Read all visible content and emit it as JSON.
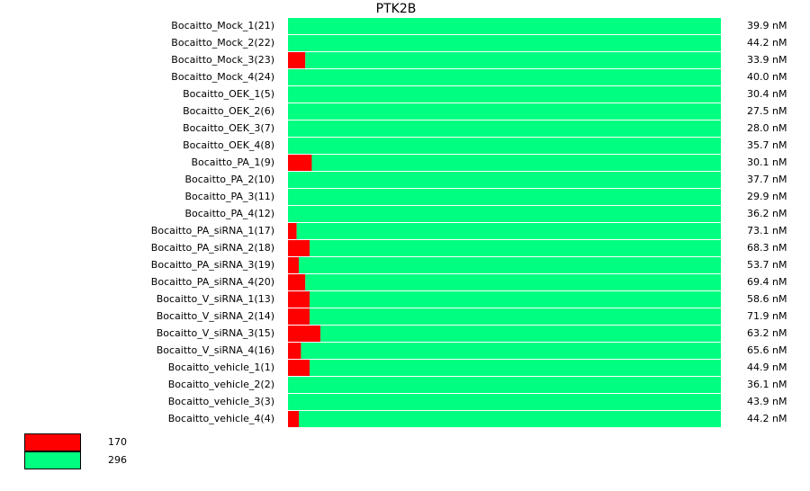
{
  "chart_data": {
    "type": "bar",
    "orientation": "horizontal",
    "stacked": true,
    "title": "PTK2B",
    "categories": [
      "Bocaitto_Mock_1(21)",
      "Bocaitto_Mock_2(22)",
      "Bocaitto_Mock_3(23)",
      "Bocaitto_Mock_4(24)",
      "Bocaitto_OEK_1(5)",
      "Bocaitto_OEK_2(6)",
      "Bocaitto_OEK_3(7)",
      "Bocaitto_OEK_4(8)",
      "Bocaitto_PA_1(9)",
      "Bocaitto_PA_2(10)",
      "Bocaitto_PA_3(11)",
      "Bocaitto_PA_4(12)",
      "Bocaitto_PA_siRNA_1(17)",
      "Bocaitto_PA_siRNA_2(18)",
      "Bocaitto_PA_siRNA_3(19)",
      "Bocaitto_PA_siRNA_4(20)",
      "Bocaitto_V_siRNA_1(13)",
      "Bocaitto_V_siRNA_2(14)",
      "Bocaitto_V_siRNA_3(15)",
      "Bocaitto_V_siRNA_4(16)",
      "Bocaitto_vehicle_1(1)",
      "Bocaitto_vehicle_2(2)",
      "Bocaitto_vehicle_3(3)",
      "Bocaitto_vehicle_4(4)"
    ],
    "series": [
      {
        "name": "170",
        "color": "#ff0000",
        "values": [
          0,
          0,
          4,
          0,
          0,
          0,
          0,
          0,
          5.5,
          0,
          0,
          0,
          2,
          5,
          2.5,
          4,
          5,
          5,
          7.5,
          3,
          5,
          0,
          0,
          2.5
        ]
      },
      {
        "name": "296",
        "color": "#00ff80",
        "values": [
          100,
          100,
          96,
          100,
          100,
          100,
          100,
          100,
          94.5,
          100,
          100,
          100,
          98,
          95,
          97.5,
          96,
          95,
          95,
          92.5,
          97,
          95,
          100,
          100,
          97.5
        ]
      }
    ],
    "concentrations": [
      "39.9 nM",
      "44.2 nM",
      "33.9 nM",
      "40.0 nM",
      "30.4 nM",
      "27.5 nM",
      "28.0 nM",
      "35.7 nM",
      "30.1 nM",
      "37.7 nM",
      "29.9 nM",
      "36.2 nM",
      "73.1 nM",
      "68.3 nM",
      "53.7 nM",
      "69.4 nM",
      "58.6 nM",
      "71.9 nM",
      "63.2 nM",
      "65.6 nM",
      "44.9 nM",
      "36.1 nM",
      "43.9 nM",
      "44.2 nM"
    ],
    "xlim": [
      0,
      100
    ],
    "legend": "bottom-left"
  }
}
